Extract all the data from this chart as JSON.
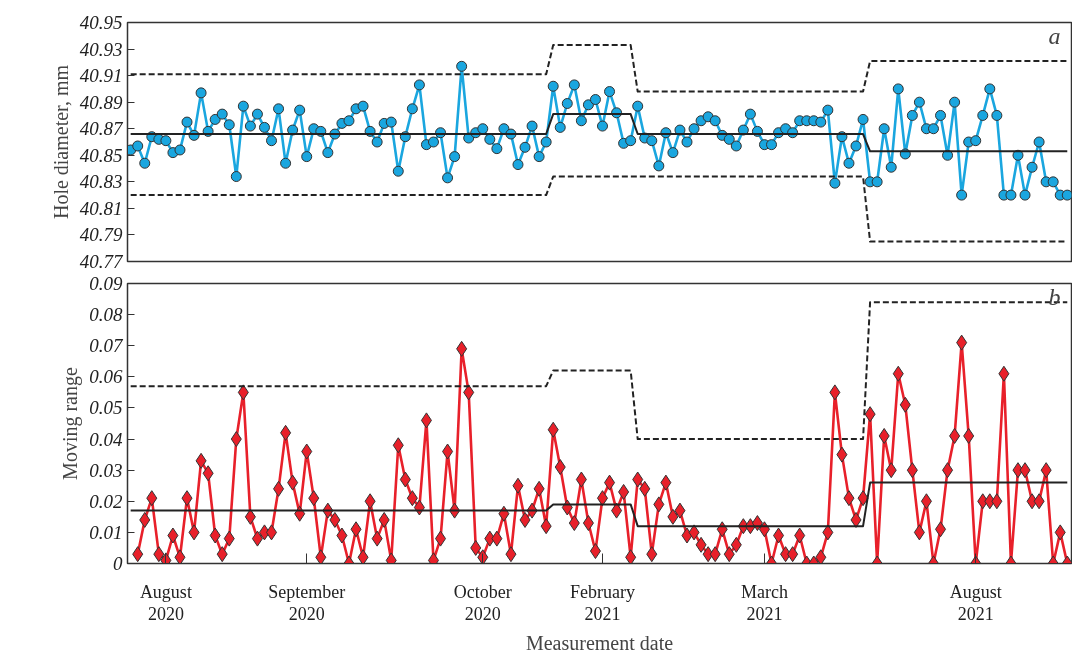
{
  "chart_data": [
    {
      "type": "line",
      "ylabel": "Hole diameter, mm",
      "annotations": [
        "a"
      ],
      "tick_labels": "y",
      "grid": false,
      "categories": [
        null,
        null,
        null,
        null,
        null,
        null,
        null,
        null,
        null,
        null,
        null,
        null,
        null,
        null,
        null,
        null,
        null,
        null,
        null,
        null,
        null,
        null,
        null,
        null,
        null,
        null,
        null,
        null,
        null,
        null,
        null,
        null,
        null,
        null,
        null,
        null,
        null,
        null,
        null,
        null,
        null,
        null,
        null,
        null,
        null,
        null,
        null,
        null,
        null,
        null,
        null,
        null,
        null,
        null,
        null,
        null,
        null,
        null,
        null,
        null,
        null,
        null,
        null,
        null,
        null,
        null,
        null,
        null,
        null,
        null,
        null,
        null,
        null,
        null,
        null,
        null,
        null,
        null,
        null,
        null,
        null,
        null,
        null,
        null,
        null,
        null,
        null,
        null,
        null,
        null,
        null,
        null,
        null,
        null,
        null,
        null,
        null,
        null,
        null,
        null,
        null,
        null,
        null,
        null,
        null,
        null,
        null,
        null,
        null,
        null,
        null,
        null,
        null,
        null,
        null,
        null,
        null,
        null,
        null,
        null,
        null,
        null,
        null,
        null,
        null,
        null,
        null,
        null,
        null,
        null,
        null,
        null,
        null,
        null
      ],
      "ylim": [
        40.77,
        40.95
      ],
      "yticks": [
        40.77,
        40.79,
        40.81,
        40.83,
        40.85,
        40.87,
        40.89,
        40.91,
        40.93,
        40.95
      ],
      "series": [
        {
          "color": "#1aa6df",
          "marker": "circle",
          "line_style": "solid",
          "values": [
            40.854,
            40.857,
            40.844,
            40.864,
            40.862,
            40.861,
            40.852,
            40.854,
            40.875,
            40.865,
            40.897,
            40.868,
            40.877,
            40.881,
            40.873,
            40.834,
            40.887,
            40.872,
            40.881,
            40.871,
            40.861,
            40.885,
            40.844,
            40.869,
            40.884,
            40.849,
            40.87,
            40.868,
            40.852,
            40.866,
            40.874,
            40.876,
            40.885,
            40.887,
            40.868,
            40.86,
            40.874,
            40.875,
            40.838,
            40.864,
            40.885,
            40.903,
            40.858,
            40.86,
            40.867,
            40.833,
            40.849,
            40.917,
            40.863,
            40.867,
            40.87,
            40.862,
            40.855,
            40.87,
            40.866,
            40.843,
            40.856,
            40.872,
            40.849,
            40.86,
            40.902,
            40.871,
            40.889,
            40.903,
            40.876,
            40.888,
            40.892,
            40.872,
            40.898,
            40.882,
            40.859,
            40.861,
            40.887,
            40.863,
            40.861,
            40.842,
            40.867,
            40.852,
            40.869,
            40.86,
            40.87,
            40.876,
            40.879,
            40.876,
            40.865,
            40.862,
            40.857,
            40.869,
            40.881,
            40.868,
            40.858,
            40.858,
            40.867,
            40.87,
            40.867,
            40.876,
            40.876,
            40.876,
            40.875,
            40.884,
            40.829,
            40.864,
            40.844,
            40.857,
            40.877,
            40.83,
            40.83,
            40.87,
            40.841,
            40.9,
            40.851,
            40.88,
            40.89,
            40.87,
            40.87,
            40.88,
            40.85,
            40.89,
            40.82,
            40.86,
            40.861,
            40.88,
            40.9,
            40.88,
            40.82,
            40.82,
            40.85,
            40.82,
            40.841,
            40.86,
            40.83,
            40.83,
            40.82,
            40.82
          ]
        },
        {
          "color": "#222222",
          "marker": "none",
          "line_style": "dashed",
          "values": [
            40.911,
            40.911,
            40.911,
            40.911,
            40.911,
            40.911,
            40.911,
            40.911,
            40.911,
            40.911,
            40.911,
            40.911,
            40.911,
            40.911,
            40.911,
            40.911,
            40.911,
            40.911,
            40.911,
            40.911,
            40.911,
            40.911,
            40.911,
            40.911,
            40.911,
            40.911,
            40.911,
            40.911,
            40.911,
            40.911,
            40.911,
            40.911,
            40.911,
            40.911,
            40.911,
            40.911,
            40.911,
            40.911,
            40.911,
            40.911,
            40.911,
            40.911,
            40.911,
            40.911,
            40.911,
            40.911,
            40.911,
            40.911,
            40.911,
            40.911,
            40.911,
            40.911,
            40.911,
            40.911,
            40.911,
            40.911,
            40.911,
            40.911,
            40.911,
            40.911,
            40.933,
            40.933,
            40.933,
            40.933,
            40.933,
            40.933,
            40.933,
            40.933,
            40.933,
            40.933,
            40.933,
            40.933,
            40.898,
            40.898,
            40.898,
            40.898,
            40.898,
            40.898,
            40.898,
            40.898,
            40.898,
            40.898,
            40.898,
            40.898,
            40.898,
            40.898,
            40.898,
            40.898,
            40.898,
            40.898,
            40.898,
            40.898,
            40.898,
            40.898,
            40.898,
            40.898,
            40.898,
            40.898,
            40.898,
            40.898,
            40.898,
            40.898,
            40.898,
            40.898,
            40.898,
            40.921,
            40.921,
            40.921,
            40.921,
            40.921,
            40.921,
            40.921,
            40.921,
            40.921,
            40.921,
            40.921,
            40.921,
            40.921,
            40.921,
            40.921,
            40.921,
            40.921,
            40.921,
            40.921,
            40.921,
            40.921,
            40.921,
            40.921,
            40.921,
            40.921,
            40.921,
            40.921,
            40.921,
            40.921
          ]
        },
        {
          "color": "#222222",
          "marker": "none",
          "line_style": "solid",
          "values": [
            40.866,
            40.866,
            40.866,
            40.866,
            40.866,
            40.866,
            40.866,
            40.866,
            40.866,
            40.866,
            40.866,
            40.866,
            40.866,
            40.866,
            40.866,
            40.866,
            40.866,
            40.866,
            40.866,
            40.866,
            40.866,
            40.866,
            40.866,
            40.866,
            40.866,
            40.866,
            40.866,
            40.866,
            40.866,
            40.866,
            40.866,
            40.866,
            40.866,
            40.866,
            40.866,
            40.866,
            40.866,
            40.866,
            40.866,
            40.866,
            40.866,
            40.866,
            40.866,
            40.866,
            40.866,
            40.866,
            40.866,
            40.866,
            40.866,
            40.866,
            40.866,
            40.866,
            40.866,
            40.866,
            40.866,
            40.866,
            40.866,
            40.866,
            40.866,
            40.866,
            40.881,
            40.881,
            40.881,
            40.881,
            40.881,
            40.881,
            40.881,
            40.881,
            40.881,
            40.881,
            40.881,
            40.881,
            40.866,
            40.866,
            40.866,
            40.866,
            40.866,
            40.866,
            40.866,
            40.866,
            40.866,
            40.866,
            40.866,
            40.866,
            40.866,
            40.866,
            40.866,
            40.866,
            40.866,
            40.866,
            40.866,
            40.866,
            40.866,
            40.866,
            40.866,
            40.866,
            40.866,
            40.866,
            40.866,
            40.866,
            40.866,
            40.866,
            40.866,
            40.866,
            40.866,
            40.853,
            40.853,
            40.853,
            40.853,
            40.853,
            40.853,
            40.853,
            40.853,
            40.853,
            40.853,
            40.853,
            40.853,
            40.853,
            40.853,
            40.853,
            40.853,
            40.853,
            40.853,
            40.853,
            40.853,
            40.853,
            40.853,
            40.853,
            40.853,
            40.853,
            40.853,
            40.853,
            40.853,
            40.853
          ]
        },
        {
          "color": "#222222",
          "marker": "none",
          "line_style": "dashed",
          "values": [
            40.82,
            40.82,
            40.82,
            40.82,
            40.82,
            40.82,
            40.82,
            40.82,
            40.82,
            40.82,
            40.82,
            40.82,
            40.82,
            40.82,
            40.82,
            40.82,
            40.82,
            40.82,
            40.82,
            40.82,
            40.82,
            40.82,
            40.82,
            40.82,
            40.82,
            40.82,
            40.82,
            40.82,
            40.82,
            40.82,
            40.82,
            40.82,
            40.82,
            40.82,
            40.82,
            40.82,
            40.82,
            40.82,
            40.82,
            40.82,
            40.82,
            40.82,
            40.82,
            40.82,
            40.82,
            40.82,
            40.82,
            40.82,
            40.82,
            40.82,
            40.82,
            40.82,
            40.82,
            40.82,
            40.82,
            40.82,
            40.82,
            40.82,
            40.82,
            40.82,
            40.834,
            40.834,
            40.834,
            40.834,
            40.834,
            40.834,
            40.834,
            40.834,
            40.834,
            40.834,
            40.834,
            40.834,
            40.834,
            40.834,
            40.834,
            40.834,
            40.834,
            40.834,
            40.834,
            40.834,
            40.834,
            40.834,
            40.834,
            40.834,
            40.834,
            40.834,
            40.834,
            40.834,
            40.834,
            40.834,
            40.834,
            40.834,
            40.834,
            40.834,
            40.834,
            40.834,
            40.834,
            40.834,
            40.834,
            40.834,
            40.834,
            40.834,
            40.834,
            40.834,
            40.834,
            40.785,
            40.785,
            40.785,
            40.785,
            40.785,
            40.785,
            40.785,
            40.785,
            40.785,
            40.785,
            40.785,
            40.785,
            40.785,
            40.785,
            40.785,
            40.785,
            40.785,
            40.785,
            40.785,
            40.785,
            40.785,
            40.785,
            40.785,
            40.785,
            40.785,
            40.785,
            40.785,
            40.785,
            40.785
          ]
        }
      ]
    },
    {
      "type": "line",
      "ylabel": "Moving range",
      "xlabel": "Measurement date",
      "annotations": [
        "b"
      ],
      "grid": false,
      "categories": [
        null,
        null,
        null,
        null,
        null,
        "August\n2020",
        null,
        null,
        null,
        null,
        null,
        null,
        null,
        null,
        null,
        null,
        null,
        null,
        null,
        null,
        null,
        null,
        null,
        null,
        null,
        "September\n2020",
        null,
        null,
        null,
        null,
        null,
        null,
        null,
        null,
        null,
        null,
        null,
        null,
        null,
        null,
        null,
        null,
        null,
        null,
        null,
        null,
        null,
        null,
        null,
        null,
        "October\n2020",
        null,
        null,
        null,
        null,
        null,
        null,
        null,
        null,
        null,
        null,
        null,
        null,
        null,
        null,
        null,
        null,
        "February\n2021",
        null,
        null,
        null,
        null,
        null,
        null,
        null,
        null,
        null,
        null,
        null,
        null,
        null,
        null,
        null,
        null,
        null,
        null,
        null,
        null,
        null,
        null,
        "March\n2021",
        null,
        null,
        null,
        null,
        null,
        null,
        null,
        null,
        null,
        null,
        null,
        null,
        null,
        null,
        null,
        null,
        null,
        null,
        null,
        null,
        null,
        null,
        null,
        null,
        null,
        null,
        null,
        null,
        null,
        "August\n2021",
        null,
        null,
        null,
        null,
        null,
        null,
        null,
        null,
        null,
        null,
        null,
        null,
        null
      ],
      "ylim": [
        0,
        0.09
      ],
      "yticks": [
        0,
        0.01,
        0.02,
        0.03,
        0.04,
        0.05,
        0.06,
        0.07,
        0.08,
        0.09
      ],
      "series": [
        {
          "color": "#e8202a",
          "marker": "diamond",
          "line_style": "solid",
          "values": [
            null,
            0.003,
            0.014,
            0.021,
            0.003,
            0.001,
            0.009,
            0.002,
            0.021,
            0.01,
            0.033,
            0.029,
            0.009,
            0.003,
            0.008,
            0.04,
            0.055,
            0.015,
            0.008,
            0.01,
            0.01,
            0.024,
            0.042,
            0.026,
            0.016,
            0.036,
            0.021,
            0.002,
            0.017,
            0.014,
            0.009,
            0.0,
            0.011,
            0.002,
            0.02,
            0.008,
            0.014,
            0.001,
            0.038,
            0.027,
            0.021,
            0.018,
            0.046,
            0.001,
            0.008,
            0.036,
            0.017,
            0.069,
            0.055,
            0.005,
            0.002,
            0.008,
            0.008,
            0.016,
            0.003,
            0.025,
            0.014,
            0.017,
            0.024,
            0.012,
            0.043,
            0.031,
            0.018,
            0.013,
            0.027,
            0.013,
            0.004,
            0.021,
            0.026,
            0.017,
            0.023,
            0.002,
            0.027,
            0.024,
            0.003,
            0.019,
            0.026,
            0.015,
            0.017,
            0.009,
            0.01,
            0.006,
            0.003,
            0.003,
            0.011,
            0.003,
            0.006,
            0.012,
            0.012,
            0.013,
            0.011,
            0.0,
            0.009,
            0.003,
            0.003,
            0.009,
            0.0,
            0.0,
            0.002,
            0.01,
            0.055,
            0.035,
            0.021,
            0.014,
            0.021,
            0.048,
            0.0,
            0.041,
            0.03,
            0.061,
            0.051,
            0.03,
            0.01,
            0.02,
            0.0,
            0.011,
            0.03,
            0.041,
            0.071,
            0.041,
            0.0,
            0.02,
            0.02,
            0.02,
            0.061,
            0.0,
            0.03,
            0.03,
            0.02,
            0.02,
            0.03,
            0.0,
            0.01,
            0.0
          ]
        },
        {
          "color": "#222222",
          "marker": "none",
          "line_style": "dashed",
          "values": [
            0.057,
            0.057,
            0.057,
            0.057,
            0.057,
            0.057,
            0.057,
            0.057,
            0.057,
            0.057,
            0.057,
            0.057,
            0.057,
            0.057,
            0.057,
            0.057,
            0.057,
            0.057,
            0.057,
            0.057,
            0.057,
            0.057,
            0.057,
            0.057,
            0.057,
            0.057,
            0.057,
            0.057,
            0.057,
            0.057,
            0.057,
            0.057,
            0.057,
            0.057,
            0.057,
            0.057,
            0.057,
            0.057,
            0.057,
            0.057,
            0.057,
            0.057,
            0.057,
            0.057,
            0.057,
            0.057,
            0.057,
            0.057,
            0.057,
            0.057,
            0.057,
            0.057,
            0.057,
            0.057,
            0.057,
            0.057,
            0.057,
            0.057,
            0.057,
            0.057,
            0.062,
            0.062,
            0.062,
            0.062,
            0.062,
            0.062,
            0.062,
            0.062,
            0.062,
            0.062,
            0.062,
            0.062,
            0.04,
            0.04,
            0.04,
            0.04,
            0.04,
            0.04,
            0.04,
            0.04,
            0.04,
            0.04,
            0.04,
            0.04,
            0.04,
            0.04,
            0.04,
            0.04,
            0.04,
            0.04,
            0.04,
            0.04,
            0.04,
            0.04,
            0.04,
            0.04,
            0.04,
            0.04,
            0.04,
            0.04,
            0.04,
            0.04,
            0.04,
            0.04,
            0.04,
            0.084,
            0.084,
            0.084,
            0.084,
            0.084,
            0.084,
            0.084,
            0.084,
            0.084,
            0.084,
            0.084,
            0.084,
            0.084,
            0.084,
            0.084,
            0.084,
            0.084,
            0.084,
            0.084,
            0.084,
            0.084,
            0.084,
            0.084,
            0.084,
            0.084,
            0.084,
            0.084,
            0.084,
            0.084
          ]
        },
        {
          "color": "#222222",
          "marker": "none",
          "line_style": "solid",
          "values": [
            0.017,
            0.017,
            0.017,
            0.017,
            0.017,
            0.017,
            0.017,
            0.017,
            0.017,
            0.017,
            0.017,
            0.017,
            0.017,
            0.017,
            0.017,
            0.017,
            0.017,
            0.017,
            0.017,
            0.017,
            0.017,
            0.017,
            0.017,
            0.017,
            0.017,
            0.017,
            0.017,
            0.017,
            0.017,
            0.017,
            0.017,
            0.017,
            0.017,
            0.017,
            0.017,
            0.017,
            0.017,
            0.017,
            0.017,
            0.017,
            0.017,
            0.017,
            0.017,
            0.017,
            0.017,
            0.017,
            0.017,
            0.017,
            0.017,
            0.017,
            0.017,
            0.017,
            0.017,
            0.017,
            0.017,
            0.017,
            0.017,
            0.017,
            0.017,
            0.017,
            0.019,
            0.019,
            0.019,
            0.019,
            0.019,
            0.019,
            0.019,
            0.019,
            0.019,
            0.019,
            0.019,
            0.019,
            0.012,
            0.012,
            0.012,
            0.012,
            0.012,
            0.012,
            0.012,
            0.012,
            0.012,
            0.012,
            0.012,
            0.012,
            0.012,
            0.012,
            0.012,
            0.012,
            0.012,
            0.012,
            0.012,
            0.012,
            0.012,
            0.012,
            0.012,
            0.012,
            0.012,
            0.012,
            0.012,
            0.012,
            0.012,
            0.012,
            0.012,
            0.012,
            0.012,
            0.026,
            0.026,
            0.026,
            0.026,
            0.026,
            0.026,
            0.026,
            0.026,
            0.026,
            0.026,
            0.026,
            0.026,
            0.026,
            0.026,
            0.026,
            0.026,
            0.026,
            0.026,
            0.026,
            0.026,
            0.026,
            0.026,
            0.026,
            0.026,
            0.026,
            0.026,
            0.026,
            0.026,
            0.026
          ]
        }
      ]
    }
  ]
}
